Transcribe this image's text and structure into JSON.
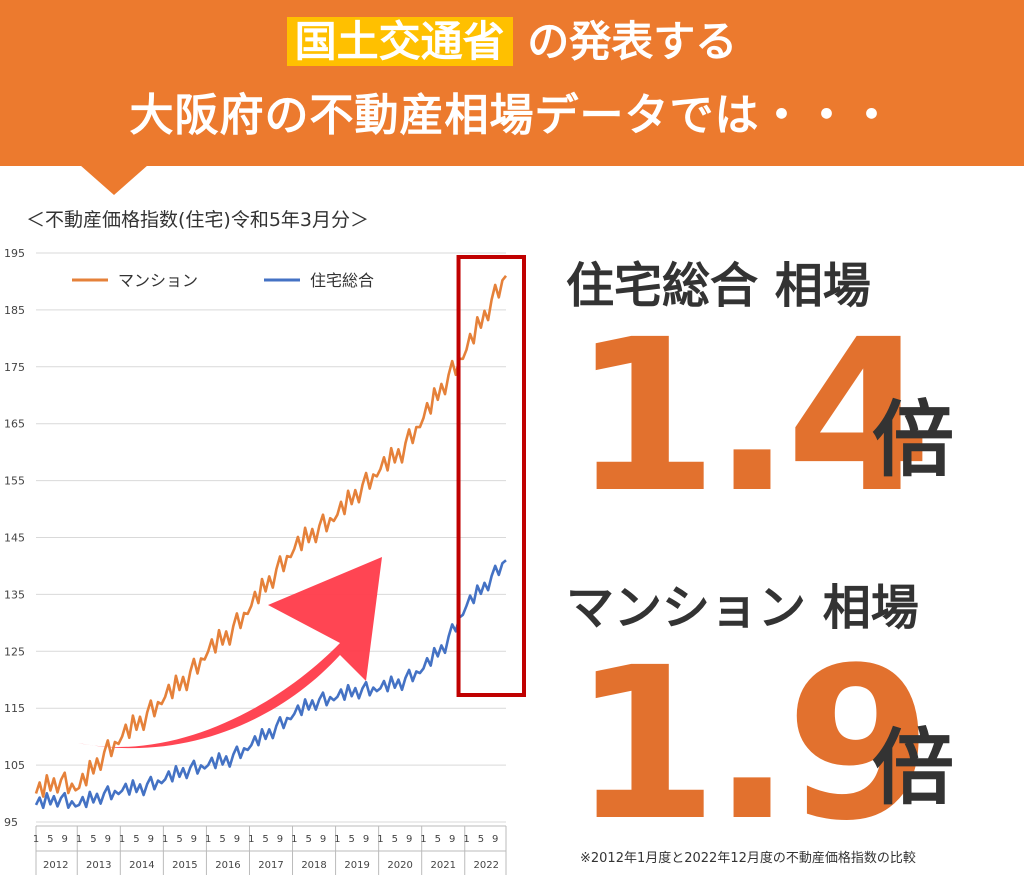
{
  "header": {
    "highlight": "国土交通省",
    "line1_rest": " の発表する",
    "line2": "大阪府の不動産相場データでは・・・"
  },
  "chart_title": "＜不動産価格指数(住宅)令和5年3月分＞",
  "colors": {
    "banner": "#ec7a2e",
    "highlight": "#ffc000",
    "mansion": "#e5813a",
    "housing": "#4472c4",
    "big_number": "#e2712e",
    "frame": "#c00000",
    "arrow": "#ff3b4a"
  },
  "chart_data": {
    "type": "line",
    "title": "＜不動産価格指数(住宅)令和5年3月分＞",
    "ylim": [
      95,
      195
    ],
    "yticks": [
      "195",
      "185",
      "175",
      "165",
      "155",
      "145",
      "135",
      "125",
      "115",
      "105",
      "95"
    ],
    "month_ticks": [
      "1",
      "5",
      "9"
    ],
    "years": [
      "2012",
      "2013",
      "2014",
      "2015",
      "2016",
      "2017",
      "2018",
      "2019",
      "2020",
      "2021",
      "2022"
    ],
    "legend_position": "top-left",
    "grid": true,
    "series": [
      {
        "name": "マンション",
        "color": "#e5813a",
        "anchors": [
          [
            "2012-01",
            100
          ],
          [
            "2012-07",
            102
          ],
          [
            "2013-01",
            101
          ],
          [
            "2013-07",
            106
          ],
          [
            "2014-01",
            110
          ],
          [
            "2014-07",
            113
          ],
          [
            "2015-01",
            117
          ],
          [
            "2015-07",
            120
          ],
          [
            "2016-01",
            125
          ],
          [
            "2016-07",
            128
          ],
          [
            "2017-01",
            133
          ],
          [
            "2017-07",
            138
          ],
          [
            "2018-01",
            143
          ],
          [
            "2018-07",
            146
          ],
          [
            "2019-01",
            149
          ],
          [
            "2019-07",
            153
          ],
          [
            "2020-01",
            157
          ],
          [
            "2020-07",
            160
          ],
          [
            "2021-01",
            166
          ],
          [
            "2021-07",
            172
          ],
          [
            "2022-01",
            178
          ],
          [
            "2022-07",
            185
          ],
          [
            "2022-12",
            191
          ]
        ]
      },
      {
        "name": "住宅総合",
        "color": "#4472c4",
        "anchors": [
          [
            "2012-01",
            98
          ],
          [
            "2012-07",
            99
          ],
          [
            "2013-01",
            98
          ],
          [
            "2013-07",
            99.5
          ],
          [
            "2014-01",
            100.5
          ],
          [
            "2014-07",
            101
          ],
          [
            "2015-01",
            102.5
          ],
          [
            "2015-07",
            104
          ],
          [
            "2016-01",
            105
          ],
          [
            "2016-07",
            106
          ],
          [
            "2017-01",
            108.5
          ],
          [
            "2017-07",
            111
          ],
          [
            "2018-01",
            114
          ],
          [
            "2018-07",
            116
          ],
          [
            "2019-01",
            117
          ],
          [
            "2019-07",
            118
          ],
          [
            "2020-01",
            118.5
          ],
          [
            "2020-07",
            119.5
          ],
          [
            "2021-01",
            122
          ],
          [
            "2021-07",
            126
          ],
          [
            "2022-01",
            133
          ],
          [
            "2022-07",
            137
          ],
          [
            "2022-12",
            141
          ]
        ]
      }
    ]
  },
  "stats": [
    {
      "label": "住宅総合 相場",
      "value": "1.4",
      "unit": "倍"
    },
    {
      "label": "マンション 相場",
      "value": "1.9",
      "unit": "倍"
    }
  ],
  "footnote": "※2012年1月度と2022年12月度の不動産価格指数の比較"
}
